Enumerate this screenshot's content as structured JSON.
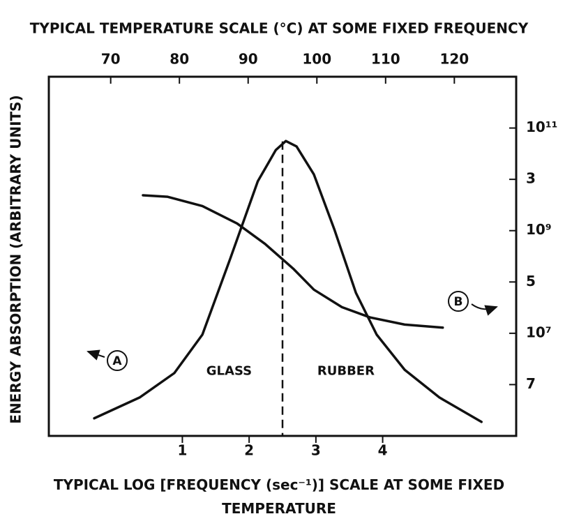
{
  "chart_data": {
    "type": "line",
    "x2_label": "TYPICAL TEMPERATURE SCALE (°C) AT SOME FIXED FREQUENCY",
    "x_label": "TYPICAL LOG [FREQUENCY (sec⁻¹)] SCALE AT SOME FIXED TEMPERATURE",
    "y_label": "ENERGY ABSORPTION (ARBITRARY UNITS)",
    "xlim": [
      -1,
      6
    ],
    "xticks": [
      1,
      2,
      3,
      4
    ],
    "x2lim": [
      61,
      129
    ],
    "x2ticks": [
      70,
      80,
      90,
      100,
      110,
      120
    ],
    "ylim": [
      0,
      10
    ],
    "y2lim": [
      5,
      12
    ],
    "y2ticks": [
      {
        "value": 11,
        "label": "10¹¹"
      },
      {
        "value": 10,
        "label": "3"
      },
      {
        "value": 9,
        "label": "10⁹"
      },
      {
        "value": 8,
        "label": "5"
      },
      {
        "value": 7,
        "label": "10⁷"
      },
      {
        "value": 6,
        "label": "7"
      }
    ],
    "divider_x": 2.5,
    "annotations": [
      {
        "text": "GLASS",
        "x": 1.7,
        "y": 1.8
      },
      {
        "text": "RUBBER",
        "x": 3.45,
        "y": 1.8
      }
    ],
    "series": [
      {
        "name": "A",
        "color": "#111111",
        "x": [
          -0.32,
          0.36,
          0.88,
          1.3,
          1.72,
          2.13,
          2.4,
          2.55,
          2.71,
          2.97,
          3.28,
          3.6,
          3.91,
          4.33,
          4.85,
          5.48
        ],
        "values": [
          0.49,
          1.07,
          1.75,
          2.82,
          4.95,
          7.09,
          7.96,
          8.21,
          8.06,
          7.28,
          5.73,
          3.98,
          2.82,
          1.84,
          1.07,
          0.39
        ]
      },
      {
        "name": "B",
        "color": "#111111",
        "axis": "y2",
        "x": [
          0.41,
          0.78,
          1.3,
          1.82,
          2.24,
          2.66,
          2.97,
          3.39,
          3.81,
          4.33,
          4.9
        ],
        "values": [
          9.69,
          9.66,
          9.48,
          9.14,
          8.74,
          8.26,
          7.85,
          7.51,
          7.31,
          7.17,
          7.11
        ]
      }
    ]
  }
}
